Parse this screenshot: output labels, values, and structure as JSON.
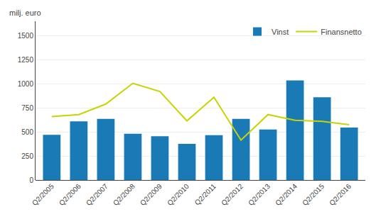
{
  "chart_data": {
    "type": "bar",
    "ylabel": "milj. euro",
    "categories": [
      "Q2/2005",
      "Q2/2006",
      "Q2/2007",
      "Q2/2008",
      "Q2/2009",
      "Q2/2010",
      "Q2/2011",
      "Q2/2012",
      "Q2/2013",
      "Q2/2014",
      "Q2/2015",
      "Q2/2016"
    ],
    "series": [
      {
        "name": "Vinst",
        "type": "bar",
        "color": "#1a7ab5",
        "values": [
          470,
          610,
          635,
          480,
          455,
          375,
          465,
          635,
          525,
          1035,
          860,
          545
        ]
      },
      {
        "name": "Finansnetto",
        "type": "line",
        "color": "#c8d400",
        "values": [
          660,
          680,
          790,
          1005,
          920,
          615,
          860,
          415,
          680,
          620,
          610,
          575
        ]
      }
    ],
    "ylim": [
      0,
      1650
    ],
    "yticks": [
      0,
      250,
      500,
      750,
      1000,
      1250,
      1500
    ],
    "grid": true,
    "legend": "upper right"
  }
}
